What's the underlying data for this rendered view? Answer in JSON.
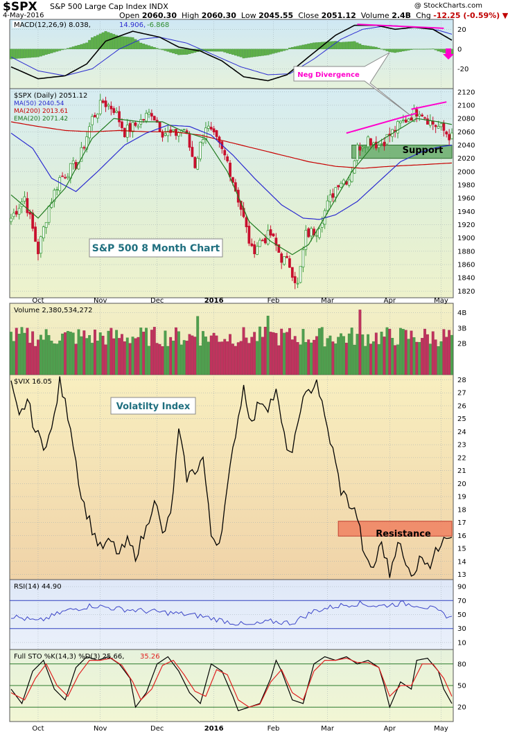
{
  "header": {
    "symbol": "$SPX",
    "description": "S&P 500 Large Cap Index  INDX",
    "site": "@ StockCharts.com",
    "date": "4-May-2016",
    "open_label": "Open",
    "open": "2060.30",
    "high_label": "High",
    "high": "2060.30",
    "low_label": "Low",
    "low": "2045.55",
    "close_label": "Close",
    "close": "2051.12",
    "volume_label": "Volume",
    "volume": "2.4B",
    "chg_label": "Chg",
    "chg": "-12.25 (-0.59%)"
  },
  "colors": {
    "up": "#3c9a3c",
    "down": "#c8102e",
    "magenta": "#ff00cc",
    "ma50": "#2a2ad0",
    "ma200": "#c80000",
    "ema20": "#1f7a1f"
  },
  "chart_data": [
    {
      "type": "line",
      "panel": "macd",
      "legend": "MACD(12,26,9) 8.038, 14.906, -6.868",
      "legend_parts": {
        "macd": "MACD(12,26,9) 8.038,",
        "signal": "14.906,",
        "hist": "-6.868"
      },
      "yticks": [
        "20",
        "0",
        "-20"
      ],
      "ylim": [
        -40,
        30
      ],
      "x_months": [
        "Oct",
        "Nov",
        "Dec",
        "2016",
        "Feb",
        "Mar",
        "Apr",
        "May"
      ],
      "macd_keypoints": [
        [
          0,
          -18
        ],
        [
          10,
          -30
        ],
        [
          20,
          -27
        ],
        [
          28,
          -15
        ],
        [
          35,
          8
        ],
        [
          45,
          18
        ],
        [
          55,
          12
        ],
        [
          62,
          2
        ],
        [
          70,
          -2
        ],
        [
          78,
          -12
        ],
        [
          86,
          -28
        ],
        [
          95,
          -32
        ],
        [
          102,
          -26
        ],
        [
          110,
          -8
        ],
        [
          120,
          14
        ],
        [
          127,
          24
        ],
        [
          135,
          24
        ],
        [
          142,
          20
        ],
        [
          149,
          22
        ],
        [
          156,
          20
        ],
        [
          163,
          9
        ]
      ],
      "signal_keypoints": [
        [
          0,
          -8
        ],
        [
          10,
          -22
        ],
        [
          20,
          -27
        ],
        [
          30,
          -20
        ],
        [
          40,
          0
        ],
        [
          48,
          10
        ],
        [
          55,
          12
        ],
        [
          65,
          6
        ],
        [
          75,
          -6
        ],
        [
          85,
          -18
        ],
        [
          95,
          -26
        ],
        [
          103,
          -25
        ],
        [
          112,
          -10
        ],
        [
          122,
          10
        ],
        [
          130,
          20
        ],
        [
          140,
          24
        ],
        [
          150,
          22
        ],
        [
          158,
          19
        ],
        [
          163,
          15
        ]
      ],
      "annotation": {
        "text": "Neg Divergence"
      }
    },
    {
      "type": "candlestick",
      "panel": "price",
      "legend": [
        "$SPX (Daily) 2051.12",
        "MA(50) 2040.54",
        "MA(200) 2013.61",
        "EMA(20) 2071.42"
      ],
      "yticks": [
        "2120",
        "2100",
        "2080",
        "2060",
        "2040",
        "2020",
        "2000",
        "1980",
        "1960",
        "1940",
        "1920",
        "1900",
        "1880",
        "1860",
        "1840",
        "1820"
      ],
      "ylim": [
        1810,
        2125
      ],
      "x_months": [
        "Oct",
        "Nov",
        "Dec",
        "2016",
        "Feb",
        "Mar",
        "Apr",
        "May"
      ],
      "close_keypoints": [
        [
          0,
          1930
        ],
        [
          5,
          1962
        ],
        [
          10,
          1880
        ],
        [
          14,
          1948
        ],
        [
          18,
          1990
        ],
        [
          25,
          2015
        ],
        [
          30,
          2080
        ],
        [
          34,
          2105
        ],
        [
          38,
          2095
        ],
        [
          42,
          2060
        ],
        [
          46,
          2070
        ],
        [
          52,
          2090
        ],
        [
          56,
          2060
        ],
        [
          60,
          2055
        ],
        [
          64,
          2065
        ],
        [
          68,
          2010
        ],
        [
          72,
          2070
        ],
        [
          76,
          2045
        ],
        [
          80,
          2015
        ],
        [
          85,
          1945
        ],
        [
          89,
          1880
        ],
        [
          92,
          1895
        ],
        [
          96,
          1905
        ],
        [
          100,
          1870
        ],
        [
          103,
          1860
        ],
        [
          106,
          1828
        ],
        [
          109,
          1905
        ],
        [
          113,
          1912
        ],
        [
          117,
          1950
        ],
        [
          121,
          1985
        ],
        [
          125,
          1990
        ],
        [
          128,
          2035
        ],
        [
          132,
          2050
        ],
        [
          136,
          2040
        ],
        [
          140,
          2055
        ],
        [
          144,
          2072
        ],
        [
          148,
          2085
        ],
        [
          151,
          2094
        ],
        [
          155,
          2075
        ],
        [
          159,
          2065
        ],
        [
          163,
          2051
        ]
      ],
      "ma50_keypoints": [
        [
          0,
          2058
        ],
        [
          8,
          2035
        ],
        [
          15,
          1990
        ],
        [
          24,
          1970
        ],
        [
          32,
          2000
        ],
        [
          42,
          2040
        ],
        [
          50,
          2058
        ],
        [
          58,
          2070
        ],
        [
          66,
          2068
        ],
        [
          74,
          2055
        ],
        [
          82,
          2025
        ],
        [
          90,
          1990
        ],
        [
          100,
          1950
        ],
        [
          108,
          1930
        ],
        [
          114,
          1928
        ],
        [
          120,
          1935
        ],
        [
          128,
          1955
        ],
        [
          136,
          1985
        ],
        [
          144,
          2015
        ],
        [
          152,
          2030
        ],
        [
          158,
          2037
        ],
        [
          163,
          2040
        ]
      ],
      "ma200_keypoints": [
        [
          0,
          2075
        ],
        [
          10,
          2068
        ],
        [
          20,
          2062
        ],
        [
          30,
          2060
        ],
        [
          40,
          2062
        ],
        [
          50,
          2060
        ],
        [
          60,
          2060
        ],
        [
          70,
          2055
        ],
        [
          80,
          2045
        ],
        [
          90,
          2035
        ],
        [
          100,
          2025
        ],
        [
          110,
          2015
        ],
        [
          120,
          2008
        ],
        [
          130,
          2005
        ],
        [
          140,
          2008
        ],
        [
          150,
          2010
        ],
        [
          163,
          2013
        ]
      ],
      "ema20_keypoints": [
        [
          0,
          1965
        ],
        [
          10,
          1930
        ],
        [
          20,
          1975
        ],
        [
          30,
          2050
        ],
        [
          38,
          2080
        ],
        [
          48,
          2075
        ],
        [
          56,
          2075
        ],
        [
          64,
          2060
        ],
        [
          72,
          2050
        ],
        [
          80,
          2000
        ],
        [
          88,
          1925
        ],
        [
          96,
          1895
        ],
        [
          104,
          1875
        ],
        [
          110,
          1890
        ],
        [
          118,
          1945
        ],
        [
          126,
          2000
        ],
        [
          134,
          2040
        ],
        [
          142,
          2060
        ],
        [
          150,
          2080
        ],
        [
          158,
          2075
        ],
        [
          163,
          2071
        ]
      ],
      "annotations": {
        "box": "S&P 500 8 Month Chart",
        "support": "Support"
      }
    },
    {
      "type": "bar",
      "panel": "volume",
      "legend": "Volume 2,380,534,272",
      "yticks": [
        "4B",
        "3B",
        "2B"
      ],
      "ylim": [
        0,
        4.6
      ]
    },
    {
      "type": "line",
      "panel": "vix",
      "legend": "$VIX 16.05",
      "yticks": [
        "28",
        "27",
        "26",
        "25",
        "24",
        "23",
        "22",
        "21",
        "20",
        "19",
        "18",
        "17",
        "16",
        "15",
        "14",
        "13"
      ],
      "ylim": [
        12.6,
        28.4
      ],
      "keypoints": [
        [
          0,
          27.5
        ],
        [
          3,
          25
        ],
        [
          6,
          26.5
        ],
        [
          9,
          24
        ],
        [
          12,
          23
        ],
        [
          15,
          24
        ],
        [
          18,
          27.8
        ],
        [
          22,
          24.5
        ],
        [
          26,
          19
        ],
        [
          30,
          16.5
        ],
        [
          33,
          15
        ],
        [
          37,
          15.5
        ],
        [
          40,
          14.5
        ],
        [
          43,
          15.5
        ],
        [
          46,
          14.5
        ],
        [
          50,
          16.5
        ],
        [
          53,
          19
        ],
        [
          56,
          16
        ],
        [
          59,
          17.5
        ],
        [
          62,
          24
        ],
        [
          65,
          20.5
        ],
        [
          68,
          21
        ],
        [
          71,
          22
        ],
        [
          74,
          16
        ],
        [
          77,
          15.5
        ],
        [
          80,
          19.5
        ],
        [
          83,
          24
        ],
        [
          86,
          27.5
        ],
        [
          89,
          24.5
        ],
        [
          92,
          26.5
        ],
        [
          95,
          26
        ],
        [
          98,
          27
        ],
        [
          101,
          23.5
        ],
        [
          104,
          22
        ],
        [
          107,
          26
        ],
        [
          110,
          27
        ],
        [
          113,
          28
        ],
        [
          116,
          25
        ],
        [
          119,
          22.5
        ],
        [
          122,
          19.5
        ],
        [
          125,
          18.5
        ],
        [
          128,
          17.5
        ],
        [
          131,
          14
        ],
        [
          134,
          13.5
        ],
        [
          137,
          15.5
        ],
        [
          140,
          13
        ],
        [
          143,
          15.8
        ],
        [
          146,
          13.5
        ],
        [
          149,
          13.2
        ],
        [
          152,
          14.5
        ],
        [
          155,
          13.8
        ],
        [
          158,
          15
        ],
        [
          160,
          16.2
        ],
        [
          163,
          16.05
        ]
      ],
      "annotations": {
        "box": "Volatilty Index",
        "resistance": "Resistance"
      }
    },
    {
      "type": "line",
      "panel": "rsi",
      "legend": "RSI(14) 44.90",
      "yticks": [
        "90",
        "70",
        "50",
        "30",
        "10"
      ],
      "ylim": [
        0,
        100
      ]
    },
    {
      "type": "line",
      "panel": "stochastic",
      "legend_parts": {
        "k": "Full STO %K(14,3) %D(3) 25.66,",
        "d": "35.26"
      },
      "yticks": [
        "80",
        "50",
        "20"
      ],
      "ylim": [
        0,
        100
      ],
      "x_months": [
        "Oct",
        "Nov",
        "Dec",
        "2016",
        "Feb",
        "Mar",
        "Apr",
        "May"
      ],
      "k_keypoints": [
        [
          0,
          45
        ],
        [
          4,
          25
        ],
        [
          8,
          70
        ],
        [
          12,
          85
        ],
        [
          16,
          45
        ],
        [
          20,
          30
        ],
        [
          24,
          75
        ],
        [
          28,
          90
        ],
        [
          32,
          85
        ],
        [
          36,
          90
        ],
        [
          40,
          80
        ],
        [
          44,
          60
        ],
        [
          46,
          20
        ],
        [
          50,
          40
        ],
        [
          54,
          80
        ],
        [
          58,
          90
        ],
        [
          62,
          70
        ],
        [
          66,
          40
        ],
        [
          70,
          25
        ],
        [
          74,
          80
        ],
        [
          78,
          70
        ],
        [
          82,
          35
        ],
        [
          84,
          15
        ],
        [
          88,
          20
        ],
        [
          92,
          25
        ],
        [
          96,
          60
        ],
        [
          98,
          85
        ],
        [
          100,
          70
        ],
        [
          104,
          30
        ],
        [
          108,
          25
        ],
        [
          112,
          80
        ],
        [
          116,
          90
        ],
        [
          120,
          85
        ],
        [
          124,
          90
        ],
        [
          128,
          80
        ],
        [
          132,
          85
        ],
        [
          136,
          75
        ],
        [
          138,
          50
        ],
        [
          140,
          20
        ],
        [
          144,
          55
        ],
        [
          148,
          45
        ],
        [
          150,
          85
        ],
        [
          154,
          88
        ],
        [
          158,
          70
        ],
        [
          160,
          45
        ],
        [
          163,
          25
        ]
      ],
      "d_keypoints": [
        [
          0,
          40
        ],
        [
          5,
          30
        ],
        [
          9,
          60
        ],
        [
          13,
          80
        ],
        [
          17,
          50
        ],
        [
          21,
          35
        ],
        [
          25,
          65
        ],
        [
          29,
          85
        ],
        [
          33,
          85
        ],
        [
          37,
          88
        ],
        [
          41,
          78
        ],
        [
          45,
          55
        ],
        [
          48,
          30
        ],
        [
          52,
          45
        ],
        [
          56,
          78
        ],
        [
          60,
          85
        ],
        [
          64,
          65
        ],
        [
          68,
          42
        ],
        [
          72,
          35
        ],
        [
          76,
          72
        ],
        [
          80,
          65
        ],
        [
          84,
          30
        ],
        [
          88,
          20
        ],
        [
          92,
          24
        ],
        [
          96,
          55
        ],
        [
          100,
          72
        ],
        [
          104,
          40
        ],
        [
          108,
          30
        ],
        [
          112,
          70
        ],
        [
          116,
          85
        ],
        [
          120,
          85
        ],
        [
          124,
          88
        ],
        [
          128,
          82
        ],
        [
          132,
          82
        ],
        [
          136,
          75
        ],
        [
          140,
          35
        ],
        [
          144,
          50
        ],
        [
          148,
          50
        ],
        [
          152,
          80
        ],
        [
          156,
          80
        ],
        [
          160,
          60
        ],
        [
          163,
          35
        ]
      ]
    }
  ]
}
